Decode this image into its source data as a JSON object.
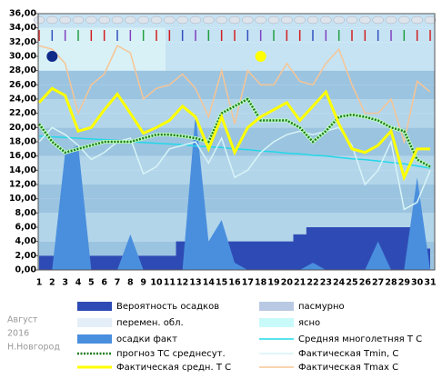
{
  "chart_data": {
    "type": "line",
    "location_note": [
      "Август",
      "2016",
      "Н.Новгород"
    ],
    "categories": [
      "1",
      "2",
      "3",
      "4",
      "5",
      "6",
      "7",
      "8",
      "9",
      "10",
      "11",
      "12",
      "13",
      "14",
      "15",
      "16",
      "17",
      "18",
      "19",
      "20",
      "21",
      "22",
      "23",
      "24",
      "25",
      "26",
      "27",
      "28",
      "29",
      "30",
      "31"
    ],
    "ylim": [
      0,
      36
    ],
    "yticks": [
      {
        "value": 0,
        "label": "0,00"
      },
      {
        "value": 2,
        "label": "2,00"
      },
      {
        "value": 4,
        "label": "4,00"
      },
      {
        "value": 6,
        "label": "6,00"
      },
      {
        "value": 8,
        "label": "8,00"
      },
      {
        "value": 10,
        "label": "10,00"
      },
      {
        "value": 12,
        "label": "12,00"
      },
      {
        "value": 14,
        "label": "14,00"
      },
      {
        "value": 16,
        "label": "16,00"
      },
      {
        "value": 18,
        "label": "18,00"
      },
      {
        "value": 20,
        "label": "20,00"
      },
      {
        "value": 22,
        "label": "22,00"
      },
      {
        "value": 24,
        "label": "24,00"
      },
      {
        "value": 26,
        "label": "26,00"
      },
      {
        "value": 28,
        "label": "28,00"
      },
      {
        "value": 30,
        "label": "30,00"
      },
      {
        "value": 32,
        "label": "32,00"
      },
      {
        "value": 34,
        "label": "34,00"
      },
      {
        "value": 36,
        "label": "36,00"
      }
    ],
    "series": [
      {
        "name": "Вероятность осадков",
        "kind": "step-area",
        "color": "#2e4bb5",
        "values": [
          2,
          2,
          2,
          2,
          2,
          2,
          2,
          2,
          2,
          2,
          2,
          4,
          4,
          4,
          4,
          4,
          4,
          4,
          4,
          4,
          5,
          6,
          6,
          6,
          6,
          6,
          6,
          6,
          6,
          6,
          3
        ]
      },
      {
        "name": "осадки факт",
        "kind": "area",
        "color": "#4a8fde",
        "values": [
          0,
          0,
          16.5,
          17.5,
          0,
          0,
          0,
          5,
          0,
          0,
          0,
          0,
          22,
          4,
          7,
          1,
          0,
          0,
          0,
          0,
          0,
          1,
          0,
          0,
          0,
          0,
          4,
          0,
          0,
          13,
          0
        ]
      },
      {
        "name": "Средняя многолетняя Т С",
        "kind": "line",
        "color": "#22d8e8",
        "values": [
          18.8,
          18.7,
          18.6,
          18.5,
          18.4,
          18.3,
          18.2,
          18.0,
          17.9,
          17.8,
          17.7,
          17.6,
          17.4,
          17.3,
          17.2,
          17.0,
          16.9,
          16.7,
          16.6,
          16.4,
          16.3,
          16.1,
          16.0,
          15.8,
          15.6,
          15.5,
          15.3,
          15.1,
          14.9,
          14.6,
          14.3
        ]
      },
      {
        "name": "Фактическая Tmin, C",
        "kind": "line",
        "color": "#d8f4f6",
        "values": [
          18,
          20,
          19,
          17.5,
          15.5,
          16.5,
          18,
          18.5,
          13.5,
          14.5,
          17,
          17.5,
          18,
          15,
          18.5,
          13,
          14,
          16.5,
          18,
          19,
          19.5,
          19,
          19.5,
          20,
          17.5,
          12,
          14,
          18,
          8.5,
          9.5,
          14
        ]
      },
      {
        "name": "Фактическая Tmax C",
        "kind": "line",
        "color": "#f7c595",
        "values": [
          31.5,
          31,
          29,
          22,
          26,
          27.5,
          31.5,
          30.5,
          24,
          25.5,
          26,
          27.5,
          25.5,
          21.5,
          28,
          20.5,
          28,
          26,
          26,
          29,
          26.5,
          26,
          29,
          31,
          26,
          22,
          22,
          24,
          18,
          26.5,
          25
        ]
      },
      {
        "name": "прогноз ТС среднесут.",
        "kind": "dotted",
        "color": "#1e7a1e",
        "values": [
          20.5,
          18,
          16.5,
          17,
          17.5,
          18,
          18,
          18,
          18.5,
          19,
          19,
          18.8,
          18.5,
          18,
          22,
          23,
          24,
          21,
          21,
          21,
          20,
          18,
          19.5,
          21.5,
          21.8,
          21.5,
          21,
          20,
          19.5,
          15.5,
          14.5
        ]
      },
      {
        "name": "Фактическая средн. Т С",
        "kind": "thick",
        "color": "#ffff00",
        "values": [
          23.5,
          25.5,
          24.5,
          19.5,
          20,
          22.5,
          24.7,
          22,
          19.2,
          20,
          21,
          23,
          21.5,
          17,
          21.5,
          16.5,
          20,
          21.5,
          22.5,
          23.5,
          21,
          23,
          25,
          20.5,
          17,
          16.5,
          17.5,
          19.5,
          13,
          17,
          17
        ]
      }
    ],
    "sky_legend": [
      {
        "name": "пасмурно",
        "color": "#b9c9e3"
      },
      {
        "name": "перемен. обл.",
        "color": "#e4eef9"
      },
      {
        "name": "ясно",
        "color": "#c9fafa"
      }
    ]
  }
}
